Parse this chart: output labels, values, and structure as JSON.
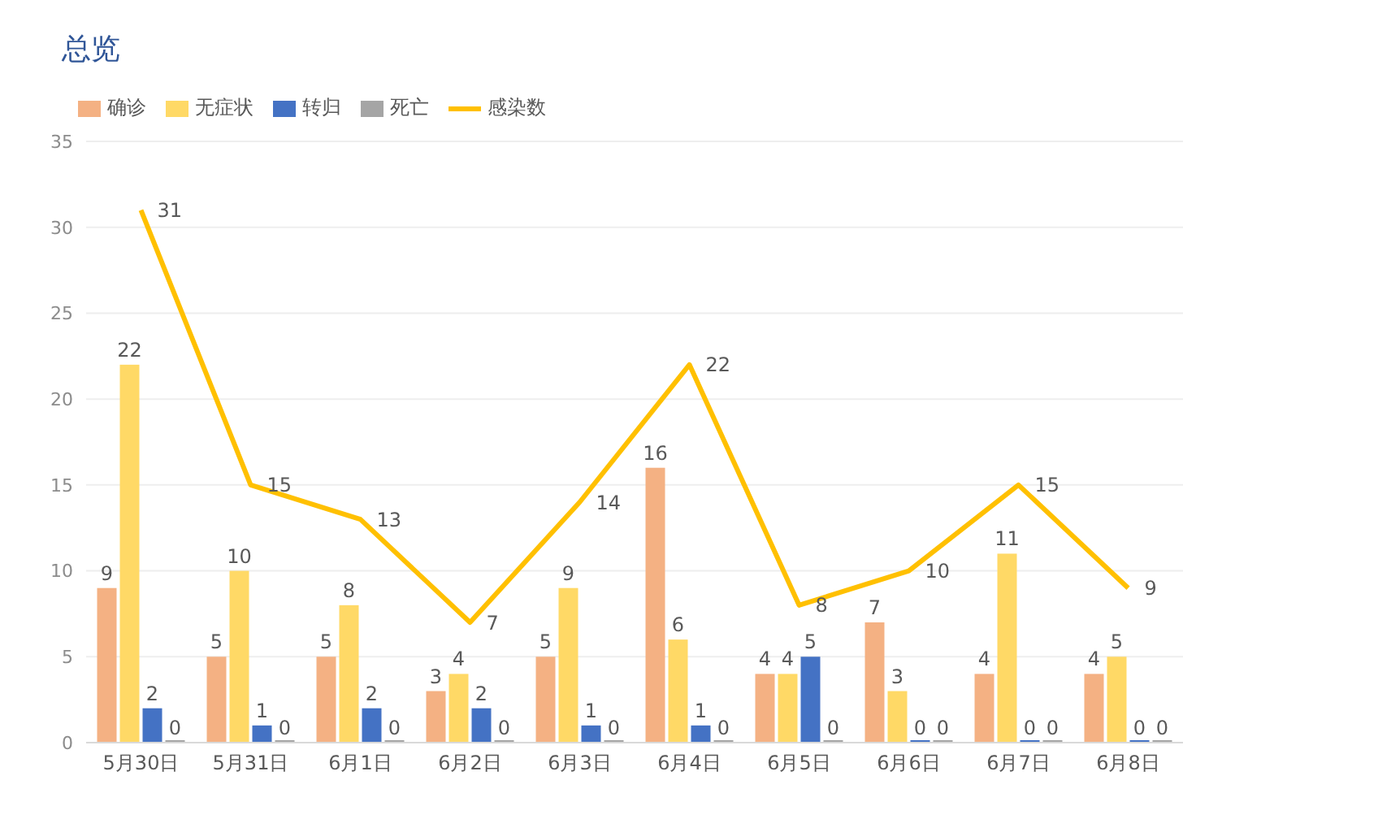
{
  "chart_data": {
    "type": "bar",
    "title": "总览",
    "categories": [
      "5月30日",
      "5月31日",
      "6月1日",
      "6月2日",
      "6月3日",
      "6月4日",
      "6月5日",
      "6月6日",
      "6月7日",
      "6月8日"
    ],
    "series": [
      {
        "name": "确诊",
        "color": "#f4b183",
        "values": [
          9,
          5,
          5,
          3,
          5,
          16,
          4,
          7,
          4,
          4
        ]
      },
      {
        "name": "无症状",
        "color": "#ffd966",
        "values": [
          22,
          10,
          8,
          4,
          9,
          6,
          4,
          3,
          11,
          5
        ]
      },
      {
        "name": "转归",
        "color": "#4472c4",
        "values": [
          2,
          1,
          2,
          2,
          1,
          1,
          5,
          0,
          0,
          0
        ]
      },
      {
        "name": "死亡",
        "color": "#a5a5a5",
        "values": [
          0,
          0,
          0,
          0,
          0,
          0,
          0,
          0,
          0,
          0
        ]
      },
      {
        "name": "感染数",
        "type": "line",
        "color": "#ffc000",
        "values": [
          31,
          15,
          13,
          7,
          14,
          22,
          8,
          10,
          15,
          9
        ]
      }
    ],
    "ylim": [
      0,
      35
    ],
    "yticks": [
      0,
      5,
      10,
      15,
      20,
      25,
      30,
      35
    ],
    "grid": "y",
    "legend": "top left",
    "data_labels": true,
    "marker": "none"
  }
}
